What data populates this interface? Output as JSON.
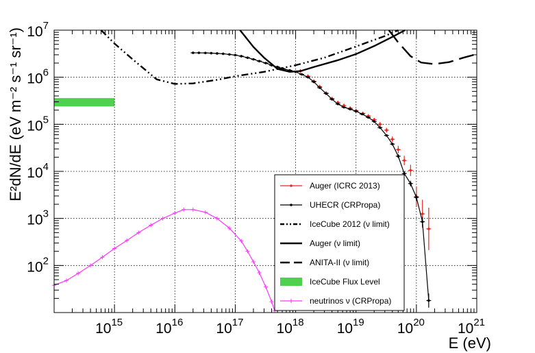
{
  "chart_data": {
    "type": "line",
    "xlabel": "E (eV)",
    "ylabel": "E²dN/dE (eV m⁻² s⁻¹ sr⁻¹)",
    "x_scale": "log",
    "y_scale": "log",
    "xlim": [
      100000000000000.0,
      1e+21
    ],
    "ylim": [
      10,
      10000000.0
    ],
    "grid": true,
    "legend_position": "bottom-right",
    "x_ticks": [
      {
        "base": "10",
        "exp": "15",
        "value": 1000000000000000.0
      },
      {
        "base": "10",
        "exp": "16",
        "value": 1e+16
      },
      {
        "base": "10",
        "exp": "17",
        "value": 1e+17
      },
      {
        "base": "10",
        "exp": "18",
        "value": 1e+18
      },
      {
        "base": "10",
        "exp": "19",
        "value": 1e+19
      },
      {
        "base": "10",
        "exp": "20",
        "value": 1e+20
      },
      {
        "base": "10",
        "exp": "21",
        "value": 1e+21
      }
    ],
    "y_ticks": [
      {
        "base": "10",
        "exp": "2",
        "value": 100
      },
      {
        "base": "10",
        "exp": "3",
        "value": 1000
      },
      {
        "base": "10",
        "exp": "4",
        "value": 10000
      },
      {
        "base": "10",
        "exp": "5",
        "value": 100000
      },
      {
        "base": "10",
        "exp": "6",
        "value": 1000000
      },
      {
        "base": "10",
        "exp": "7",
        "value": 10000000
      }
    ],
    "series": [
      {
        "name": "Auger (ICRC 2013)",
        "style": "points",
        "color": "#e8281e",
        "points": [
          {
            "x": 1.2e+18,
            "y": 1350000.0,
            "err": 0.04
          },
          {
            "x": 1.6e+18,
            "y": 1050000.0,
            "err": 0.04
          },
          {
            "x": 2e+18,
            "y": 820000.0,
            "err": 0.04
          },
          {
            "x": 2.5e+18,
            "y": 630000.0,
            "err": 0.04
          },
          {
            "x": 3.2e+18,
            "y": 460000.0,
            "err": 0.04
          },
          {
            "x": 4e+18,
            "y": 350000.0,
            "err": 0.04
          },
          {
            "x": 5e+18,
            "y": 290000.0,
            "err": 0.04
          },
          {
            "x": 6.3e+18,
            "y": 250000.0,
            "err": 0.04
          },
          {
            "x": 8e+18,
            "y": 220000.0,
            "err": 0.04
          },
          {
            "x": 1e+19,
            "y": 195000.0,
            "err": 0.04
          },
          {
            "x": 1.3e+19,
            "y": 170000.0,
            "err": 0.04
          },
          {
            "x": 1.6e+19,
            "y": 150000.0,
            "err": 0.04
          },
          {
            "x": 2e+19,
            "y": 125000.0,
            "err": 0.04
          },
          {
            "x": 2.5e+19,
            "y": 100000.0,
            "err": 0.05
          },
          {
            "x": 3.2e+19,
            "y": 75000.0,
            "err": 0.05
          },
          {
            "x": 4e+19,
            "y": 48000.0,
            "err": 0.06
          },
          {
            "x": 5e+19,
            "y": 29000.0,
            "err": 0.08
          },
          {
            "x": 6.3e+19,
            "y": 17000.0,
            "err": 0.1
          },
          {
            "x": 8e+19,
            "y": 10500.0,
            "err": 0.12
          },
          {
            "x": 1e+20,
            "y": 2900.0,
            "err": 0.22
          },
          {
            "x": 1.26e+20,
            "y": 1250.0,
            "err": 0.3
          },
          {
            "x": 1.6e+20,
            "y": 600.0,
            "err": 0.45
          }
        ]
      },
      {
        "name": "UHECR (CRPropa)",
        "style": "points-line",
        "color": "#000000",
        "points": [
          {
            "x": 2e+16,
            "y": 3300000.0,
            "err": 0.01
          },
          {
            "x": 2.5e+16,
            "y": 3300000.0,
            "err": 0.01
          },
          {
            "x": 3.2e+16,
            "y": 3280000.0,
            "err": 0.01
          },
          {
            "x": 4e+16,
            "y": 3250000.0,
            "err": 0.01
          },
          {
            "x": 5e+16,
            "y": 3200000.0,
            "err": 0.01
          },
          {
            "x": 6.3e+16,
            "y": 3150000.0,
            "err": 0.01
          },
          {
            "x": 8e+16,
            "y": 3050000.0,
            "err": 0.01
          },
          {
            "x": 1e+17,
            "y": 2950000.0,
            "err": 0.01
          },
          {
            "x": 1.26e+17,
            "y": 2800000.0,
            "err": 0.01
          },
          {
            "x": 1.6e+17,
            "y": 2600000.0,
            "err": 0.01
          },
          {
            "x": 2e+17,
            "y": 2400000.0,
            "err": 0.01
          },
          {
            "x": 2.5e+17,
            "y": 2200000.0,
            "err": 0.01
          },
          {
            "x": 3.2e+17,
            "y": 2000000.0,
            "err": 0.01
          },
          {
            "x": 4e+17,
            "y": 1800000.0,
            "err": 0.01
          },
          {
            "x": 5e+17,
            "y": 1650000.0,
            "err": 0.01
          },
          {
            "x": 6.3e+17,
            "y": 1500000.0,
            "err": 0.01
          },
          {
            "x": 8e+17,
            "y": 1400000.0,
            "err": 0.01
          },
          {
            "x": 1e+18,
            "y": 1300000.0,
            "err": 0.01
          },
          {
            "x": 1.26e+18,
            "y": 1150000.0,
            "err": 0.01
          },
          {
            "x": 1.6e+18,
            "y": 1000000.0,
            "err": 0.01
          },
          {
            "x": 2e+18,
            "y": 800000.0,
            "err": 0.01
          },
          {
            "x": 2.5e+18,
            "y": 600000.0,
            "err": 0.01
          },
          {
            "x": 3.2e+18,
            "y": 450000.0,
            "err": 0.01
          },
          {
            "x": 4e+18,
            "y": 340000.0,
            "err": 0.01
          },
          {
            "x": 5e+18,
            "y": 270000.0,
            "err": 0.01
          },
          {
            "x": 6.3e+18,
            "y": 230000.0,
            "err": 0.01
          },
          {
            "x": 8e+18,
            "y": 210000.0,
            "err": 0.01
          },
          {
            "x": 1e+19,
            "y": 190000.0,
            "err": 0.01
          },
          {
            "x": 1.26e+19,
            "y": 165000.0,
            "err": 0.01
          },
          {
            "x": 1.6e+19,
            "y": 140000.0,
            "err": 0.02
          },
          {
            "x": 2e+19,
            "y": 115000.0,
            "err": 0.02
          },
          {
            "x": 2.5e+19,
            "y": 85000.0,
            "err": 0.02
          },
          {
            "x": 3.2e+19,
            "y": 58000.0,
            "err": 0.02
          },
          {
            "x": 4e+19,
            "y": 38000.0,
            "err": 0.03
          },
          {
            "x": 5e+19,
            "y": 21000.0,
            "err": 0.04
          },
          {
            "x": 6.3e+19,
            "y": 9000.0,
            "err": 0.05
          },
          {
            "x": 8e+19,
            "y": 5500.0,
            "err": 0.06
          },
          {
            "x": 1e+20,
            "y": 2800.0,
            "err": 0.07
          },
          {
            "x": 1.26e+20,
            "y": 850.0,
            "err": 0.1
          },
          {
            "x": 1.6e+20,
            "y": 18,
            "err": 0.15
          }
        ]
      },
      {
        "name": "IceCube 2012 (ν limit)",
        "style": "dash-dot-dot",
        "color": "#000000",
        "points": [
          {
            "x": 600000000000000.0,
            "y": 10000000.0
          },
          {
            "x": 1000000000000000.0,
            "y": 5200000.0
          },
          {
            "x": 2000000000000000.0,
            "y": 2400000.0
          },
          {
            "x": 5000000000000000.0,
            "y": 900000.0
          },
          {
            "x": 1e+16,
            "y": 720000.0
          },
          {
            "x": 2e+16,
            "y": 740000.0
          },
          {
            "x": 5e+16,
            "y": 880000.0
          },
          {
            "x": 1e+17,
            "y": 1050000.0
          },
          {
            "x": 3e+17,
            "y": 1300000.0
          },
          {
            "x": 1e+18,
            "y": 1800000.0
          },
          {
            "x": 3e+18,
            "y": 2600000.0
          },
          {
            "x": 1e+19,
            "y": 4500000.0
          },
          {
            "x": 3e+19,
            "y": 7500000.0
          },
          {
            "x": 5e+19,
            "y": 10000000.0
          }
        ]
      },
      {
        "name": "Auger (ν limit)",
        "style": "solid",
        "color": "#000000",
        "points": [
          {
            "x": 1.2e+17,
            "y": 10000000.0
          },
          {
            "x": 2e+17,
            "y": 4400000.0
          },
          {
            "x": 3e+17,
            "y": 2600000.0
          },
          {
            "x": 5e+17,
            "y": 1500000.0
          },
          {
            "x": 8e+17,
            "y": 1300000.0
          },
          {
            "x": 1.2e+18,
            "y": 1350000.0
          },
          {
            "x": 2e+18,
            "y": 1650000.0
          },
          {
            "x": 5e+18,
            "y": 2300000.0
          },
          {
            "x": 1e+19,
            "y": 3100000.0
          },
          {
            "x": 2e+19,
            "y": 4600000.0
          },
          {
            "x": 4e+19,
            "y": 7200000.0
          },
          {
            "x": 6.5e+19,
            "y": 10000000.0
          }
        ]
      },
      {
        "name": "ANITA-II (ν limit)",
        "style": "long-dash",
        "color": "#000000",
        "points": [
          {
            "x": 3.5e+19,
            "y": 10000000.0
          },
          {
            "x": 5e+19,
            "y": 5500000.0
          },
          {
            "x": 8e+19,
            "y": 2800000.0
          },
          {
            "x": 1.2e+20,
            "y": 2050000.0
          },
          {
            "x": 2e+20,
            "y": 1900000.0
          },
          {
            "x": 3.5e+20,
            "y": 2100000.0
          },
          {
            "x": 6e+20,
            "y": 2600000.0
          },
          {
            "x": 1e+21,
            "y": 3100000.0
          }
        ]
      },
      {
        "name": "IceCube Flux Level",
        "style": "band",
        "color": "#4fd04f",
        "x_range": [
          100000000000000.0,
          1000000000000000.0
        ],
        "y_range": [
          240000.0,
          360000.0
        ]
      },
      {
        "name": "neutrinos ν (CRPropa)",
        "style": "markers-line",
        "color": "#ff33ff",
        "points": [
          {
            "x": 100000000000000.0,
            "y": 38
          },
          {
            "x": 160000000000000.0,
            "y": 48
          },
          {
            "x": 250000000000000.0,
            "y": 68
          },
          {
            "x": 400000000000000.0,
            "y": 100
          },
          {
            "x": 630000000000000.0,
            "y": 150
          },
          {
            "x": 1000000000000000.0,
            "y": 230
          },
          {
            "x": 1600000000000000.0,
            "y": 340
          },
          {
            "x": 2500000000000000.0,
            "y": 500
          },
          {
            "x": 4000000000000000.0,
            "y": 720
          },
          {
            "x": 6300000000000000.0,
            "y": 1000
          },
          {
            "x": 1e+16,
            "y": 1300
          },
          {
            "x": 1.4e+16,
            "y": 1540
          },
          {
            "x": 2e+16,
            "y": 1540
          },
          {
            "x": 3.2e+16,
            "y": 1350
          },
          {
            "x": 5e+16,
            "y": 1000
          },
          {
            "x": 8e+16,
            "y": 620
          },
          {
            "x": 1.26e+17,
            "y": 330
          },
          {
            "x": 1.6e+17,
            "y": 200
          },
          {
            "x": 2e+17,
            "y": 120
          },
          {
            "x": 2.5e+17,
            "y": 70
          },
          {
            "x": 3.2e+17,
            "y": 35
          },
          {
            "x": 4e+17,
            "y": 17
          },
          {
            "x": 4.5e+17,
            "y": 11
          }
        ]
      }
    ]
  }
}
